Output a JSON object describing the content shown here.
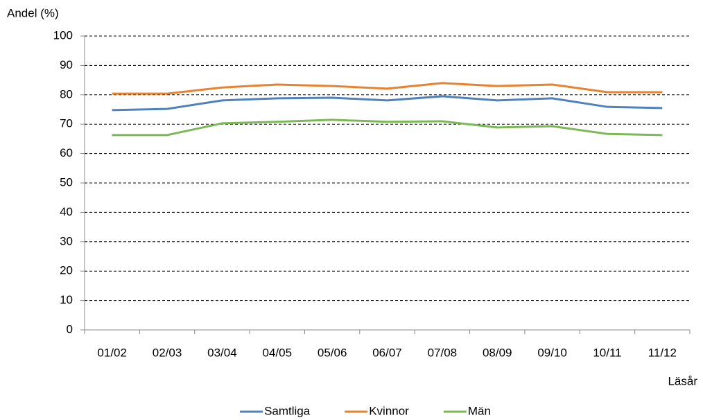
{
  "chart_data": {
    "type": "line",
    "y_label": "Andel (%)",
    "x_label": "Läsår",
    "categories": [
      "01/02",
      "02/03",
      "03/04",
      "04/05",
      "05/06",
      "06/07",
      "07/08",
      "08/09",
      "09/10",
      "10/11",
      "11/12"
    ],
    "series": [
      {
        "name": "Samtliga",
        "color": "#4f81bd",
        "values": [
          74.8,
          75.2,
          78.1,
          78.8,
          79.0,
          78.1,
          79.5,
          78.1,
          78.8,
          75.9,
          75.5
        ]
      },
      {
        "name": "Kvinnor",
        "color": "#e8822e",
        "values": [
          80.4,
          80.4,
          82.5,
          83.5,
          83.0,
          82.1,
          84.0,
          83.0,
          83.5,
          80.9,
          80.9
        ]
      },
      {
        "name": "Män",
        "color": "#7cb855",
        "values": [
          66.3,
          66.3,
          70.3,
          70.8,
          71.5,
          70.8,
          71.0,
          68.9,
          69.3,
          66.7,
          66.3
        ]
      }
    ],
    "ylim": [
      0,
      100
    ],
    "yticks": [
      0,
      10,
      20,
      30,
      40,
      50,
      60,
      70,
      80,
      90,
      100
    ],
    "grid": true,
    "legend": "bottom"
  }
}
